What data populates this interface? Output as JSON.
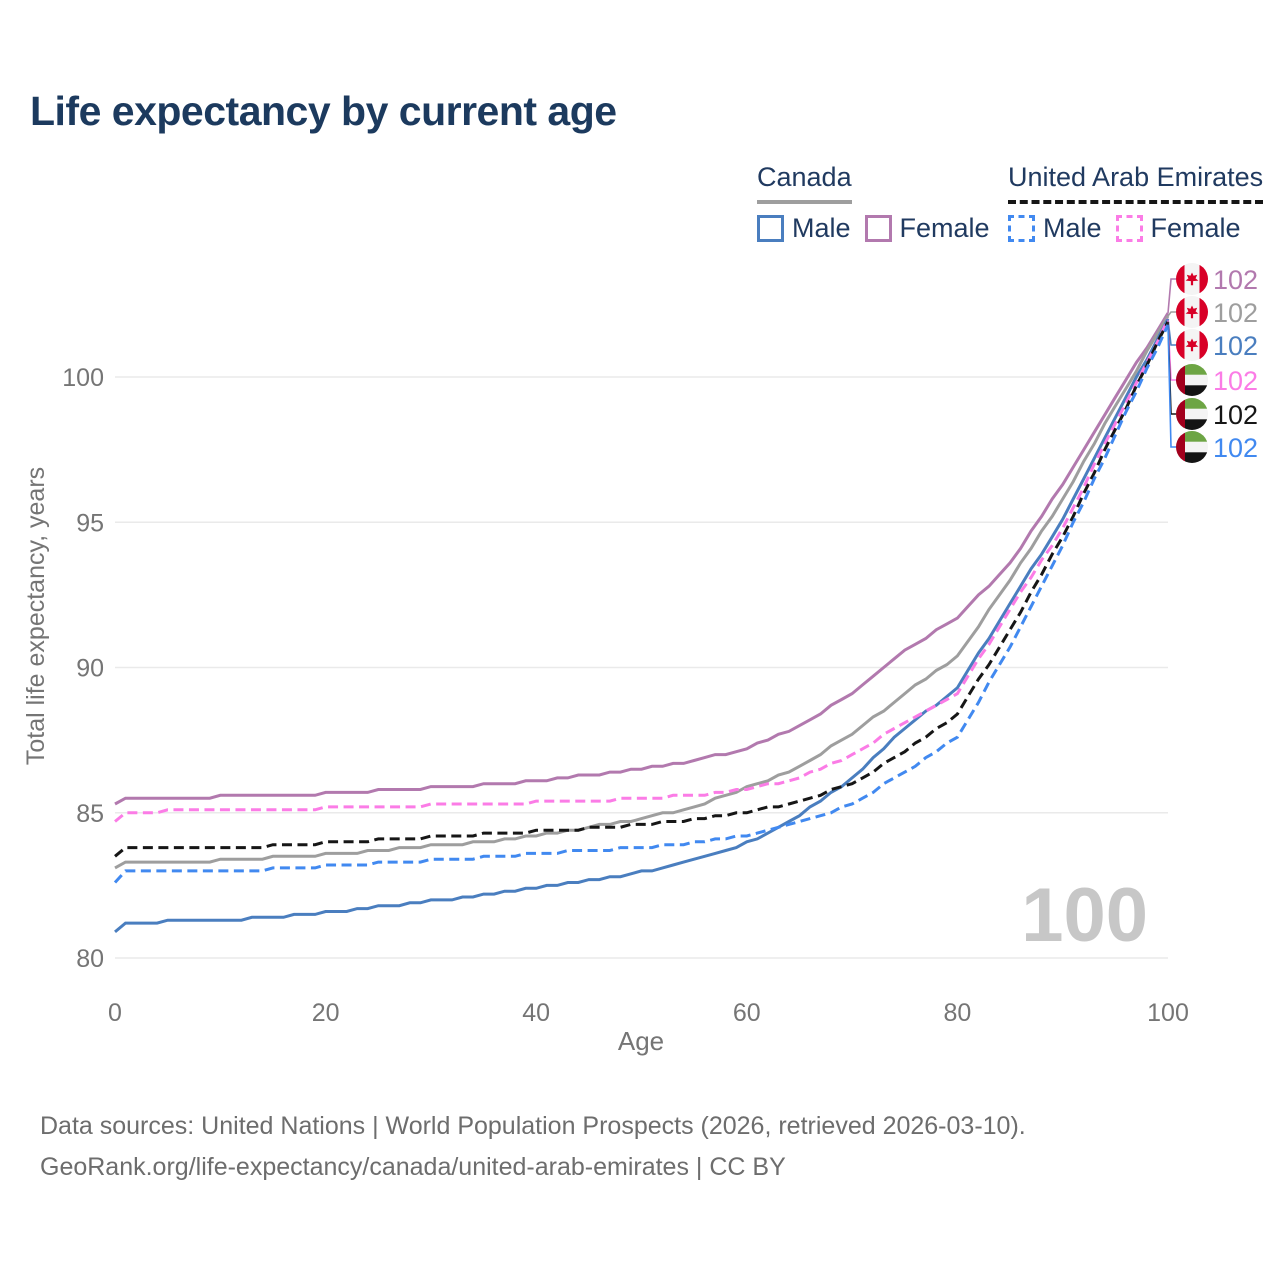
{
  "title": "Life expectancy by current age",
  "watermark_age": "100",
  "legend": {
    "groups": [
      {
        "name": "Canada",
        "style": "solid",
        "underline_color": "#9e9e9e",
        "items": [
          {
            "label": "Male",
            "color": "#4a7ebf"
          },
          {
            "label": "Female",
            "color": "#b279ae"
          }
        ]
      },
      {
        "name": "United Arab Emirates",
        "style": "dashed",
        "underline_color": "#161616",
        "items": [
          {
            "label": "Male",
            "color": "#4189f0"
          },
          {
            "label": "Female",
            "color": "#fb7ce6"
          }
        ]
      }
    ]
  },
  "footer": {
    "line1": "Data sources: United Nations | World Population Prospects (2026, retrieved 2026-03-10).",
    "line2": "GeoRank.org/life-expectancy/canada/united-arab-emirates | CC BY"
  },
  "chart_data": {
    "type": "line",
    "title": "Life expectancy by current age",
    "xlabel": "Age",
    "ylabel": "Total life expectancy, years",
    "xlim": [
      0,
      100
    ],
    "ylim": [
      79.5,
      103.5
    ],
    "xticks": [
      0,
      20,
      40,
      60,
      80,
      100
    ],
    "yticks": [
      80,
      85,
      90,
      95,
      100
    ],
    "grid": "horizontal",
    "legend_position": "top-right",
    "x": [
      0,
      1,
      5,
      10,
      15,
      20,
      25,
      30,
      35,
      40,
      45,
      50,
      55,
      60,
      65,
      70,
      75,
      80,
      85,
      90,
      95,
      100
    ],
    "series": [
      {
        "name": "Canada Female",
        "country": "Canada",
        "sex": "Female",
        "color": "#b279ae",
        "dash": false,
        "flag": "ca",
        "end_label": "102",
        "values": [
          85.3,
          85.5,
          85.5,
          85.55,
          85.6,
          85.65,
          85.75,
          85.85,
          85.95,
          86.1,
          86.3,
          86.5,
          86.8,
          87.2,
          88.0,
          89.1,
          90.6,
          91.7,
          93.6,
          96.3,
          99.3,
          102.2
        ]
      },
      {
        "name": "Canada",
        "country": "Canada",
        "sex": "Both",
        "color": "#9e9e9e",
        "dash": false,
        "flag": "ca",
        "end_label": "102",
        "values": [
          83.1,
          83.3,
          83.3,
          83.35,
          83.45,
          83.55,
          83.7,
          83.85,
          84.0,
          84.2,
          84.5,
          84.8,
          85.2,
          85.85,
          86.6,
          87.7,
          89.1,
          90.4,
          93.0,
          95.8,
          99.0,
          102.1
        ]
      },
      {
        "name": "Canada Male",
        "country": "Canada",
        "sex": "Male",
        "color": "#4a7ebf",
        "dash": false,
        "flag": "ca",
        "end_label": "102",
        "values": [
          80.9,
          81.2,
          81.25,
          81.3,
          81.4,
          81.55,
          81.75,
          81.95,
          82.15,
          82.4,
          82.65,
          82.95,
          83.35,
          83.95,
          84.9,
          86.2,
          87.9,
          89.3,
          92.2,
          95.1,
          98.6,
          102.0
        ]
      },
      {
        "name": "United Arab Emirates Female",
        "country": "United Arab Emirates",
        "sex": "Female",
        "color": "#fb7ce6",
        "dash": true,
        "flag": "ae",
        "end_label": "102",
        "values": [
          84.65,
          85.0,
          85.05,
          85.1,
          85.1,
          85.15,
          85.2,
          85.25,
          85.3,
          85.35,
          85.4,
          85.5,
          85.6,
          85.8,
          86.2,
          87.0,
          88.1,
          89.1,
          92.0,
          94.8,
          98.4,
          101.95
        ]
      },
      {
        "name": "United Arab Emirates",
        "country": "United Arab Emirates",
        "sex": "Both",
        "color": "#161616",
        "dash": true,
        "flag": "ae",
        "end_label": "102",
        "values": [
          83.5,
          83.75,
          83.8,
          83.8,
          83.85,
          83.95,
          84.05,
          84.15,
          84.25,
          84.35,
          84.45,
          84.6,
          84.75,
          85.0,
          85.4,
          86.0,
          87.1,
          88.4,
          91.3,
          94.5,
          98.2,
          101.9
        ]
      },
      {
        "name": "United Arab Emirates Male",
        "country": "United Arab Emirates",
        "sex": "Male",
        "color": "#4189f0",
        "dash": true,
        "flag": "ae",
        "end_label": "102",
        "values": [
          82.55,
          82.95,
          83.0,
          83.0,
          83.05,
          83.15,
          83.25,
          83.35,
          83.45,
          83.6,
          83.7,
          83.8,
          83.95,
          84.2,
          84.65,
          85.3,
          86.4,
          87.6,
          90.7,
          94.2,
          98.0,
          101.8
        ]
      }
    ]
  }
}
